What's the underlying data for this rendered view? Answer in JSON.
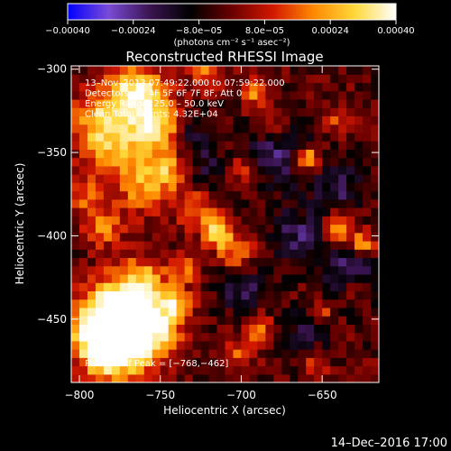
{
  "chart_data": {
    "type": "heatmap",
    "title": "Reconstructed RHESSI Image",
    "xlabel": "Heliocentric X (arcsec)",
    "ylabel": "Heliocentric Y (arcsec)",
    "xlim": [
      -805,
      -615
    ],
    "ylim": [
      -488,
      -298
    ],
    "x_ticks": [
      -800,
      -750,
      -700,
      -650
    ],
    "y_ticks": [
      -300,
      -350,
      -400,
      -450
    ],
    "x_tick_labels": [
      "−800",
      "−750",
      "−700",
      "−650"
    ],
    "y_tick_labels": [
      "−300",
      "−350",
      "−400",
      "−450"
    ],
    "colorbar": {
      "min": -0.0004,
      "max": 0.0004,
      "ticks": [
        -0.0004,
        -0.00024,
        -8e-05,
        8e-05,
        0.00024,
        0.0004
      ],
      "tick_labels": [
        "−0.00040",
        "−0.00024",
        "−8.0e−05",
        "8.0e−05",
        "0.00024",
        "0.00040"
      ],
      "unit_label": "(photons cm⁻² s⁻¹ asec⁻²)",
      "stops": [
        "#0000ff",
        "#7a4bd6",
        "#3a1450",
        "#000000",
        "#6a0000",
        "#d21800",
        "#ff8a00",
        "#ffd83a",
        "#ffffff"
      ]
    },
    "annotations": [
      "13–Nov–2013 07:49:22.000 to 07:59:22.000",
      "Detectors: 3F 4F 5F 6F 7F 8F, Att 0",
      "Energy Range: 25.0 – 50.0 keV",
      "Clean    Total counts: 4.32E+04"
    ],
    "peak_label": "Position of Peak = [−768,−462]",
    "grid": false
  },
  "footer": {
    "timestamp": "14–Dec–2016 17:00"
  }
}
